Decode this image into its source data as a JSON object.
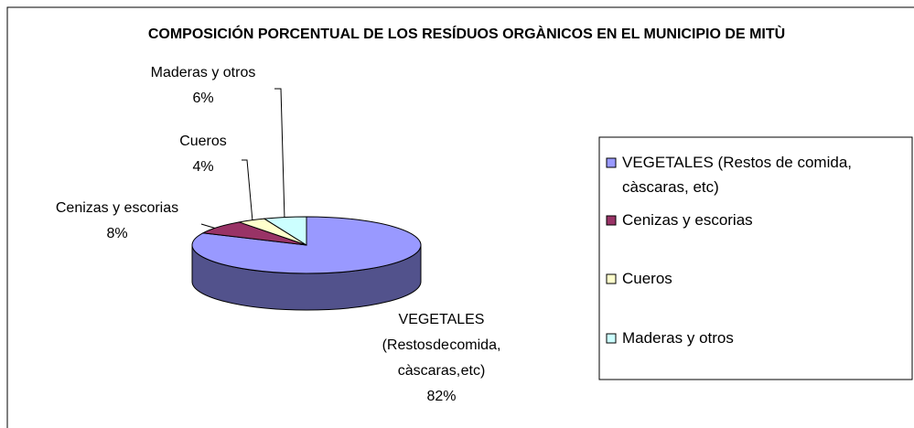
{
  "chart_data": {
    "type": "pie",
    "title": "COMPOSICIÓN PORCENTUAL DE LOS RESÍDUOS ORGÀNICOS EN EL MUNICIPIO DE MITÙ",
    "categories": [
      "VEGETALES (Restos de comida, càscaras, etc)",
      "Cenizas y escorias",
      "Cueros",
      "Maderas y otros"
    ],
    "values": [
      82,
      8,
      4,
      6
    ],
    "value_labels": [
      "82%",
      "8%",
      "4%",
      "6%"
    ],
    "colors": [
      "#9999ff",
      "#993366",
      "#ffffcc",
      "#ccffff"
    ],
    "legend": "right"
  }
}
